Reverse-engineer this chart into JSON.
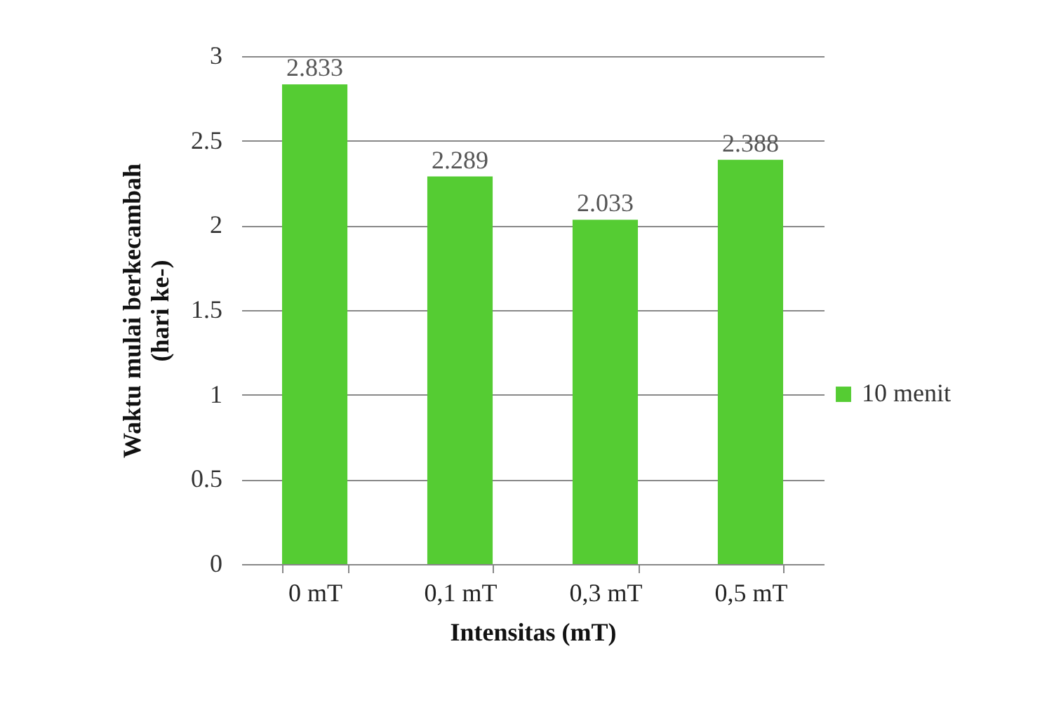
{
  "chart_data": {
    "type": "bar",
    "xlabel": "Intensitas (mT)",
    "ylabel": "Waktu mulai berkecambah\n(hari ke-)",
    "categories": [
      "0 mT",
      "0,1 mT",
      "0,3 mT",
      "0,5 mT"
    ],
    "series": [
      {
        "name": "10 menit",
        "color": "#55cc33",
        "values": [
          2.833,
          2.289,
          2.033,
          2.388
        ]
      }
    ],
    "ylim": [
      0,
      3
    ],
    "yticks": [
      0,
      0.5,
      1,
      1.5,
      2,
      2.5,
      3
    ],
    "grid": "y",
    "legend": "right",
    "data_labels": true
  }
}
